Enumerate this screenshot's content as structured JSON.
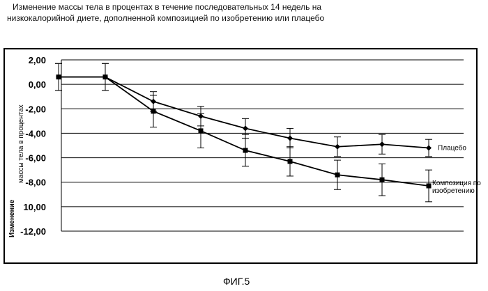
{
  "chart_data": {
    "type": "line",
    "title_line1": "Изменение массы тела в процентах в течение последовательных 14 недель на",
    "title_line2": "низкокалорийной диете, дополненной композицией по изобретению или плацебо",
    "ylabel_main": "массы тела в процентах",
    "ylabel_prefix": "Изменение",
    "xlabel": "",
    "x": [
      1,
      2,
      3,
      4,
      5,
      6,
      7,
      8,
      9
    ],
    "ylim": [
      -12,
      2
    ],
    "yticks": [
      2,
      0,
      -2,
      -4,
      -6,
      -8,
      -10,
      -12
    ],
    "ytick_labels": [
      "2,00",
      "0,00",
      "-2,00",
      "-4,00",
      "-6,00",
      "-8,00",
      "10,00",
      "-12,00"
    ],
    "grid": true,
    "series": [
      {
        "name": "Плацебо",
        "marker": "diamond",
        "values": [
          0.6,
          0.6,
          -1.4,
          -2.6,
          -3.6,
          -4.4,
          -5.1,
          -4.9,
          -5.2
        ],
        "err": [
          1.1,
          1.1,
          0.8,
          0.8,
          0.8,
          0.8,
          0.8,
          0.8,
          0.7
        ]
      },
      {
        "name": "Композиция по изобретению",
        "legend_lines": [
          "Композиция по",
          "изобретению"
        ],
        "marker": "square",
        "values": [
          0.6,
          0.6,
          -2.2,
          -3.8,
          -5.4,
          -6.3,
          -7.4,
          -7.8,
          -8.3
        ],
        "err": [
          1.1,
          1.1,
          1.3,
          1.4,
          1.3,
          1.2,
          1.2,
          1.3,
          1.3
        ]
      }
    ]
  },
  "footer": {
    "figure_label": "ФИГ.5"
  }
}
